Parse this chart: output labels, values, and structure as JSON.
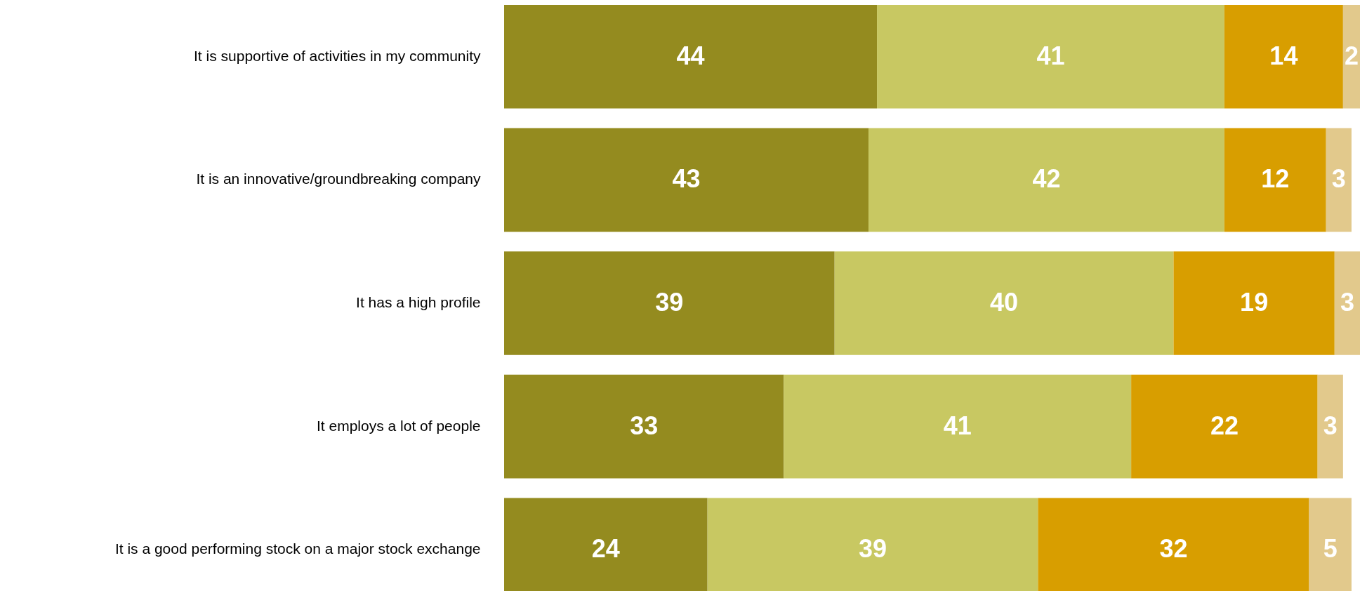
{
  "chart_data": {
    "type": "bar",
    "orientation": "horizontal",
    "stacked": true,
    "data_labels": true,
    "grid": false,
    "categories": [
      "It is supportive of activities in my community",
      "It is an innovative/groundbreaking company",
      "It has a high profile",
      "It employs a lot of people",
      "It is a good performing stock on a major stock exchange"
    ],
    "series": [
      {
        "color": "#948b1f",
        "values": [
          44,
          43,
          39,
          33,
          24
        ]
      },
      {
        "color": "#c8c862",
        "values": [
          41,
          42,
          40,
          41,
          39
        ]
      },
      {
        "color": "#d89e00",
        "values": [
          14,
          12,
          19,
          22,
          32
        ]
      },
      {
        "color": "#e2c98c",
        "values": [
          2,
          3,
          3,
          3,
          5
        ]
      }
    ]
  }
}
